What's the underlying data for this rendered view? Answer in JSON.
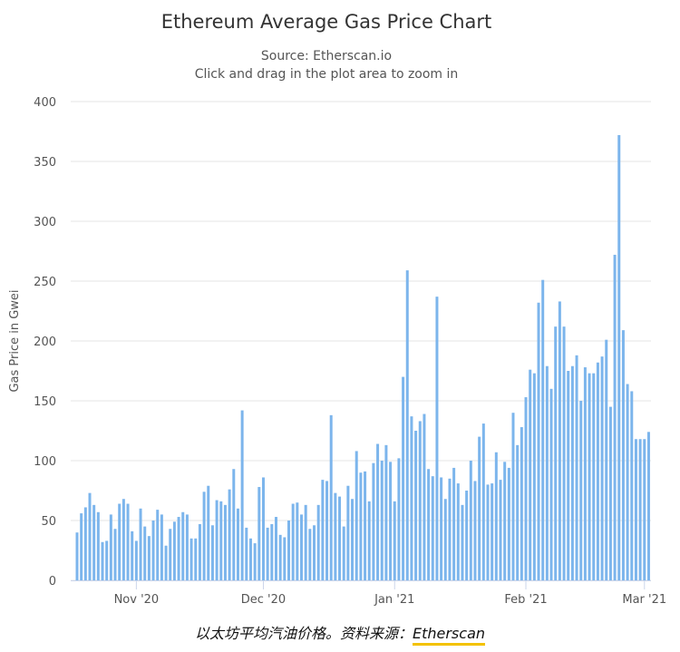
{
  "chart_data": {
    "type": "bar",
    "title": "Ethereum Average Gas Price Chart",
    "subtitle": "Source: Etherscan.io",
    "hint": "Click and drag in the plot area to zoom in",
    "xlabel": "",
    "ylabel": "Gas Price in Gwei",
    "ylim": [
      0,
      400
    ],
    "yticks": [
      0,
      50,
      100,
      150,
      200,
      250,
      300,
      350,
      400
    ],
    "xticks": [
      {
        "date": "2020-11-01",
        "label": "Nov '20"
      },
      {
        "date": "2020-12-01",
        "label": "Dec '20"
      },
      {
        "date": "2021-01-01",
        "label": "Jan '21"
      },
      {
        "date": "2021-02-01",
        "label": "Feb '21"
      },
      {
        "date": "2021-03-01",
        "label": "Mar '21"
      }
    ],
    "grid": "horizontal",
    "legend": "none",
    "bar_color": "#7cb5ec",
    "x": [
      "2020-10-18",
      "2020-10-19",
      "2020-10-20",
      "2020-10-21",
      "2020-10-22",
      "2020-10-23",
      "2020-10-24",
      "2020-10-25",
      "2020-10-26",
      "2020-10-27",
      "2020-10-28",
      "2020-10-29",
      "2020-10-30",
      "2020-10-31",
      "2020-11-01",
      "2020-11-02",
      "2020-11-03",
      "2020-11-04",
      "2020-11-05",
      "2020-11-06",
      "2020-11-07",
      "2020-11-08",
      "2020-11-09",
      "2020-11-10",
      "2020-11-11",
      "2020-11-12",
      "2020-11-13",
      "2020-11-14",
      "2020-11-15",
      "2020-11-16",
      "2020-11-17",
      "2020-11-18",
      "2020-11-19",
      "2020-11-20",
      "2020-11-21",
      "2020-11-22",
      "2020-11-23",
      "2020-11-24",
      "2020-11-25",
      "2020-11-26",
      "2020-11-27",
      "2020-11-28",
      "2020-11-29",
      "2020-11-30",
      "2020-12-01",
      "2020-12-02",
      "2020-12-03",
      "2020-12-04",
      "2020-12-05",
      "2020-12-06",
      "2020-12-07",
      "2020-12-08",
      "2020-12-09",
      "2020-12-10",
      "2020-12-11",
      "2020-12-12",
      "2020-12-13",
      "2020-12-14",
      "2020-12-15",
      "2020-12-16",
      "2020-12-17",
      "2020-12-18",
      "2020-12-19",
      "2020-12-20",
      "2020-12-21",
      "2020-12-22",
      "2020-12-23",
      "2020-12-24",
      "2020-12-25",
      "2020-12-26",
      "2020-12-27",
      "2020-12-28",
      "2020-12-29",
      "2020-12-30",
      "2020-12-31",
      "2021-01-01",
      "2021-01-02",
      "2021-01-03",
      "2021-01-04",
      "2021-01-05",
      "2021-01-06",
      "2021-01-07",
      "2021-01-08",
      "2021-01-09",
      "2021-01-10",
      "2021-01-11",
      "2021-01-12",
      "2021-01-13",
      "2021-01-14",
      "2021-01-15",
      "2021-01-16",
      "2021-01-17",
      "2021-01-18",
      "2021-01-19",
      "2021-01-20",
      "2021-01-21",
      "2021-01-22",
      "2021-01-23",
      "2021-01-24",
      "2021-01-25",
      "2021-01-26",
      "2021-01-27",
      "2021-01-28",
      "2021-01-29",
      "2021-01-30",
      "2021-01-31",
      "2021-02-01",
      "2021-02-02",
      "2021-02-03",
      "2021-02-04",
      "2021-02-05",
      "2021-02-06",
      "2021-02-07",
      "2021-02-08",
      "2021-02-09",
      "2021-02-10",
      "2021-02-11",
      "2021-02-12",
      "2021-02-13",
      "2021-02-14",
      "2021-02-15",
      "2021-02-16",
      "2021-02-17",
      "2021-02-18",
      "2021-02-19",
      "2021-02-20",
      "2021-02-21",
      "2021-02-22",
      "2021-02-23",
      "2021-02-24",
      "2021-02-25",
      "2021-02-26",
      "2021-02-27",
      "2021-02-28",
      "2021-03-01",
      "2021-03-02"
    ],
    "values": [
      40,
      56,
      61,
      73,
      63,
      57,
      32,
      33,
      55,
      43,
      64,
      68,
      64,
      41,
      33,
      60,
      45,
      37,
      50,
      59,
      55,
      29,
      43,
      49,
      53,
      57,
      55,
      35,
      35,
      47,
      74,
      79,
      46,
      67,
      66,
      63,
      76,
      93,
      60,
      142,
      44,
      35,
      31,
      78,
      86,
      44,
      47,
      53,
      38,
      36,
      50,
      64,
      65,
      55,
      63,
      43,
      46,
      63,
      84,
      83,
      138,
      73,
      70,
      45,
      79,
      68,
      108,
      90,
      91,
      66,
      98,
      114,
      100,
      113,
      99,
      66,
      102,
      170,
      259,
      137,
      125,
      133,
      139,
      93,
      87,
      237,
      86,
      68,
      85,
      94,
      81,
      63,
      75,
      100,
      83,
      120,
      131,
      80,
      81,
      107,
      84,
      99,
      94,
      140,
      113,
      128,
      153,
      176,
      173,
      232,
      251,
      179,
      160,
      212,
      233,
      212,
      175,
      179,
      188,
      150,
      178,
      173,
      173,
      182,
      187,
      201,
      145,
      272,
      372,
      209,
      164,
      158,
      118,
      118,
      118,
      124
    ]
  },
  "caption": {
    "text": "以太坊平均汽油价格。资料来源：",
    "link": "Etherscan"
  }
}
